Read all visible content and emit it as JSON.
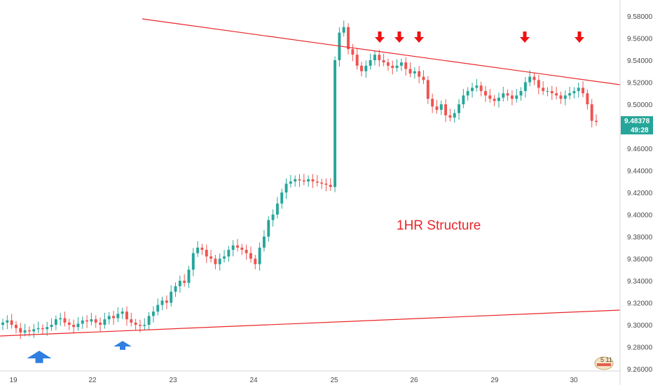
{
  "chart_data": {
    "type": "candlestick",
    "annotation": "1HR Structure",
    "x_ticks": [
      "19",
      "22",
      "23",
      "24",
      "25",
      "26",
      "29",
      "30"
    ],
    "y_ticks": [
      "9.58000",
      "9.56000",
      "9.54000",
      "9.52000",
      "9.50000",
      "9.48000",
      "9.46000",
      "9.44000",
      "9.42000",
      "9.40000",
      "9.38000",
      "9.36000",
      "9.34000",
      "9.32000",
      "9.30000",
      "9.28000",
      "9.26000"
    ],
    "ylim": [
      9.26,
      9.585
    ],
    "last_price": "9.48378",
    "countdown": "49:28",
    "up_color": "#26a69a",
    "down_color": "#ef5350",
    "trendline_color": "#e8262a",
    "arrow_down_color": "#ee1111",
    "arrow_up_color": "#2f7fe0",
    "grid": false,
    "price_series_close": [
      9.302,
      9.304,
      9.3,
      9.297,
      9.293,
      9.295,
      9.294,
      9.296,
      9.297,
      9.296,
      9.298,
      9.3,
      9.305,
      9.306,
      9.302,
      9.3,
      9.298,
      9.301,
      9.304,
      9.303,
      9.305,
      9.302,
      9.3,
      9.305,
      9.308,
      9.306,
      9.31,
      9.312,
      9.305,
      9.302,
      9.3,
      9.299,
      9.3,
      9.308,
      9.312,
      9.318,
      9.322,
      9.32,
      9.33,
      9.335,
      9.34,
      9.338,
      9.35,
      9.365,
      9.37,
      9.368,
      9.362,
      9.36,
      9.355,
      9.36,
      9.362,
      9.368,
      9.372,
      9.37,
      9.368,
      9.365,
      9.36,
      9.355,
      9.37,
      9.38,
      9.395,
      9.4,
      9.41,
      9.42,
      9.428,
      9.43,
      9.432,
      9.431,
      9.43,
      9.432,
      9.43,
      9.429,
      9.428,
      9.427,
      9.425,
      9.54,
      9.565,
      9.57,
      9.55,
      9.545,
      9.535,
      9.53,
      9.535,
      9.54,
      9.545,
      9.54,
      9.538,
      9.535,
      9.533,
      9.535,
      9.538,
      9.532,
      9.528,
      9.53,
      9.525,
      9.522,
      9.505,
      9.498,
      9.495,
      9.5,
      9.49,
      9.488,
      9.492,
      9.5,
      9.508,
      9.512,
      9.515,
      9.517,
      9.512,
      9.508,
      9.505,
      9.503,
      9.506,
      9.51,
      9.508,
      9.505,
      9.508,
      9.512,
      9.52,
      9.525,
      9.522,
      9.515,
      9.512,
      9.512,
      9.51,
      9.508,
      9.505,
      9.508,
      9.51,
      9.512,
      9.515,
      9.51,
      9.5,
      9.485,
      9.484
    ],
    "trendlines": [
      {
        "from": {
          "x": "21.5",
          "y": 9.578
        },
        "to": {
          "x": "30.6",
          "y": 9.518
        }
      },
      {
        "from": {
          "x": "18.9",
          "y": 9.29
        },
        "to": {
          "x": "30.6",
          "y": 9.313
        }
      }
    ],
    "arrows_down_at": [
      "25.6",
      "25.8",
      "26.0",
      "29.4",
      "30.1"
    ],
    "arrows_up_at": [
      "19.4",
      "22.4"
    ],
    "logo_text": "5 11"
  }
}
